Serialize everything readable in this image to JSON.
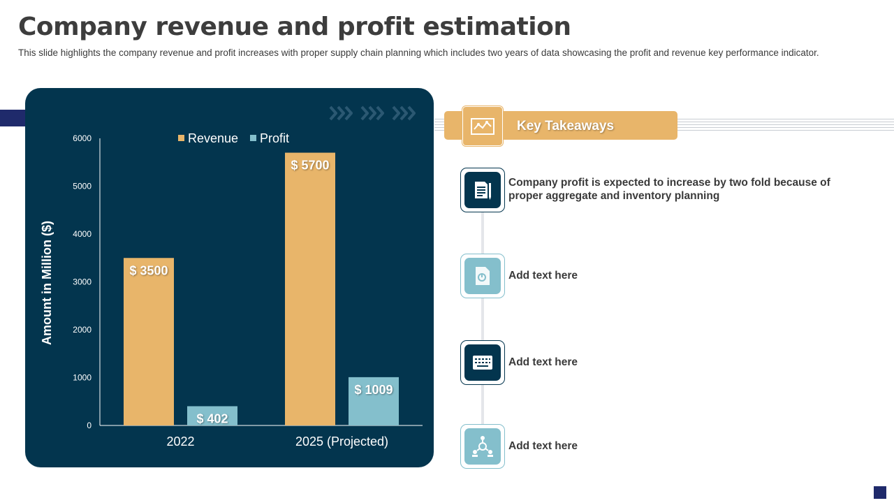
{
  "page": {
    "title": "Company revenue and profit estimation",
    "subtitle": "This slide highlights the company revenue and profit increases with proper supply chain planning which includes two years of data showcasing the profit and revenue key performance indicator."
  },
  "colors": {
    "panel": "#03354e",
    "revenue": "#e8b56a",
    "profit": "#84bfcc",
    "accent_navy": "#1f2a6b"
  },
  "chart_data": {
    "type": "bar",
    "title": "",
    "categories": [
      "2022",
      "2025 (Projected)"
    ],
    "series": [
      {
        "name": "Revenue",
        "values": [
          3500,
          5700
        ],
        "labels": [
          "$ 3500",
          "$ 5700"
        ]
      },
      {
        "name": "Profit",
        "values": [
          402,
          1009
        ],
        "labels": [
          "$ 402",
          "$ 1009"
        ]
      }
    ],
    "xlabel": "",
    "ylabel": "Amount in Million ($)",
    "ylim": [
      0,
      6000
    ],
    "yticks": [
      0,
      1000,
      2000,
      3000,
      4000,
      5000,
      6000
    ],
    "legend": "top-center",
    "grid": false
  },
  "takeaways": {
    "title": "Key Takeaways",
    "items": [
      {
        "text": "Company profit is expected to increase by two fold because of proper aggregate and inventory planning",
        "icon": "document-pen-icon"
      },
      {
        "text": "Add text here",
        "icon": "file-chart-icon"
      },
      {
        "text": "Add text here",
        "icon": "keyboard-icon"
      },
      {
        "text": "Add text here",
        "icon": "team-network-icon"
      }
    ]
  }
}
